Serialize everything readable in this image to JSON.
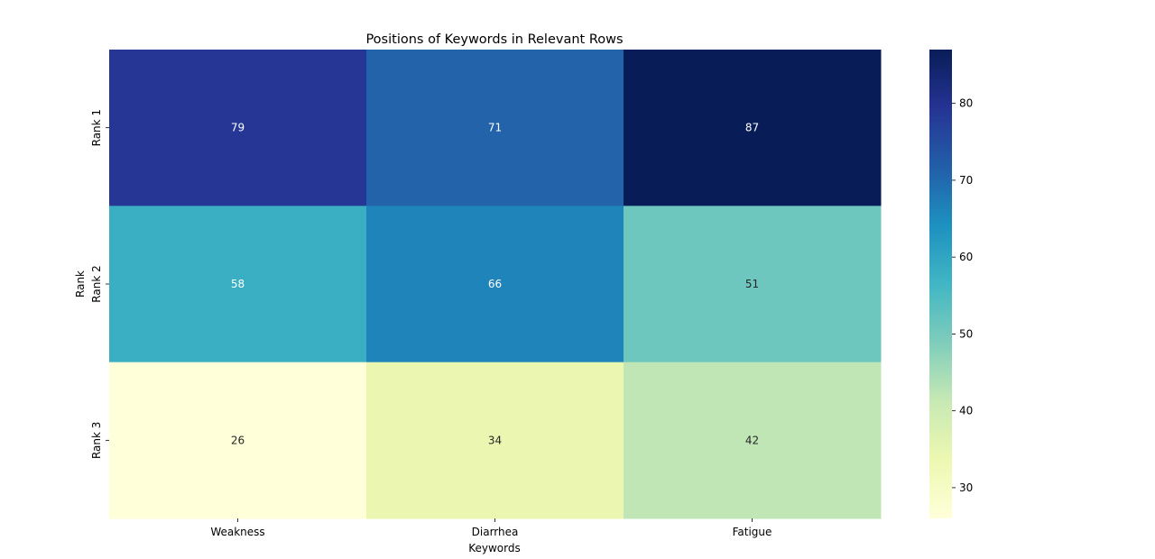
{
  "chart_data": {
    "type": "heatmap",
    "title": "Positions of Keywords in Relevant Rows",
    "xlabel": "Keywords",
    "ylabel": "Rank",
    "x_categories": [
      "Weakness",
      "Diarrhea",
      "Fatigue"
    ],
    "y_categories": [
      "Rank 1",
      "Rank 2",
      "Rank 3"
    ],
    "values": [
      [
        79,
        71,
        87
      ],
      [
        58,
        66,
        51
      ],
      [
        26,
        34,
        42
      ]
    ],
    "annotations": true,
    "colormap": "YlGnBu",
    "value_range": [
      26,
      87
    ],
    "colorbar_ticks": [
      30,
      40,
      50,
      60,
      70,
      80
    ],
    "colorbar_ticks_text": [
      "30",
      "40",
      "50",
      "60",
      "70",
      "80"
    ],
    "colorbar_position": "right",
    "grid": false,
    "colors": {
      "light_text": "#ffffff",
      "dark_text": "#262626"
    }
  }
}
